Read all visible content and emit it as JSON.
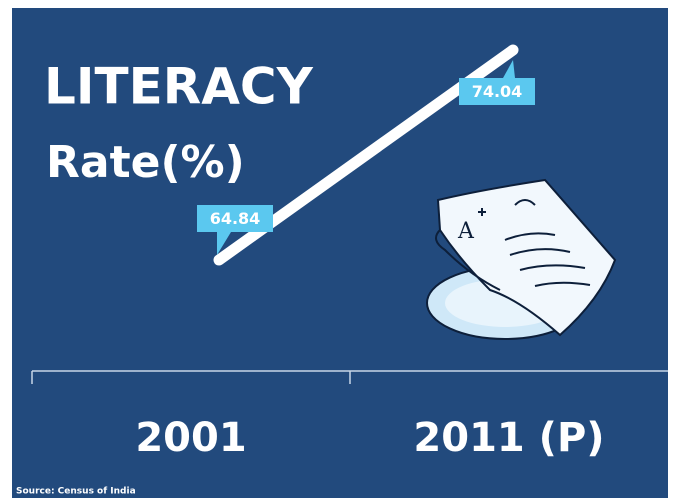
{
  "chart_data": {
    "type": "line",
    "title": "LITERACY",
    "subtitle": "Rate(%)",
    "categories": [
      "2001",
      "2011 (P)"
    ],
    "values": [
      64.84,
      74.04
    ],
    "color": "#ffffff",
    "label_color": "#5bc8ef",
    "source": "Source: Census of India"
  }
}
